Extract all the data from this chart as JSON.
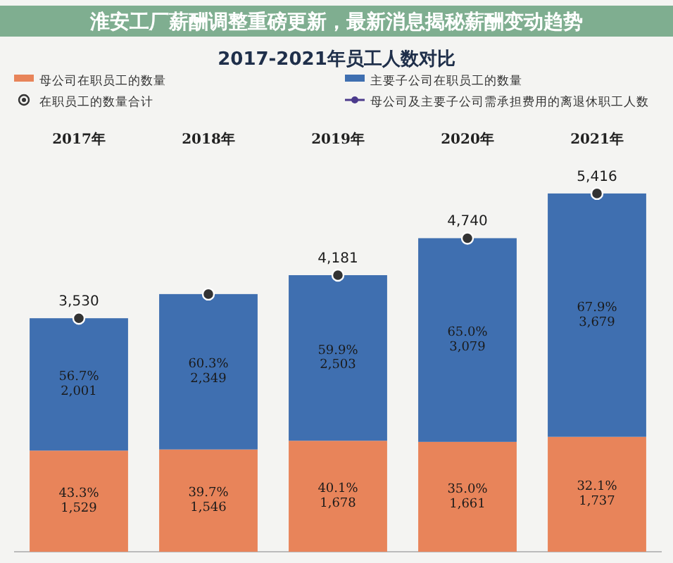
{
  "chart_data": {
    "type": "bar",
    "stacked": true,
    "title": "2017-2021年员工人数对比",
    "annotations": [
      "淮安工厂薪酬调整重磅更新，最新消息揭秘薪酬变动趋势"
    ],
    "categories": [
      "2017年",
      "2018年",
      "2019年",
      "2020年",
      "2021年"
    ],
    "legend": "top",
    "series": [
      {
        "name": "母公司在职员工的数量",
        "color": "#e8845a",
        "values": [
          1529,
          1546,
          1678,
          1661,
          1737
        ],
        "value_labels": [
          "43.3%\n1,529",
          "39.7%\n1,546",
          "40.1%\n1,678",
          "35.0%\n1,661",
          "32.1%\n1,737"
        ]
      },
      {
        "name": "主要子公司在职员工的数量",
        "color": "#3f6fb0",
        "values": [
          2001,
          2349,
          2503,
          3079,
          3679
        ],
        "value_labels": [
          "56.7%\n2,001",
          "60.3%\n2,349",
          "59.9%\n2,503",
          "65.0%\n3,079",
          "67.9%\n3,679"
        ]
      },
      {
        "name": "在职员工的数量合计",
        "type": "scatter",
        "marker": "circle",
        "color": "#333333",
        "values": [
          3530,
          3895,
          4181,
          4740,
          5416
        ],
        "value_labels": [
          "3,530",
          null,
          "4,181",
          "4,740",
          "5,416"
        ]
      },
      {
        "name": "母公司及主要子公司需承担费用的离退休职工人数",
        "type": "line",
        "marker": "circle",
        "color": "#4b3a8c",
        "values": [
          null,
          null,
          null,
          null,
          null
        ]
      }
    ]
  }
}
